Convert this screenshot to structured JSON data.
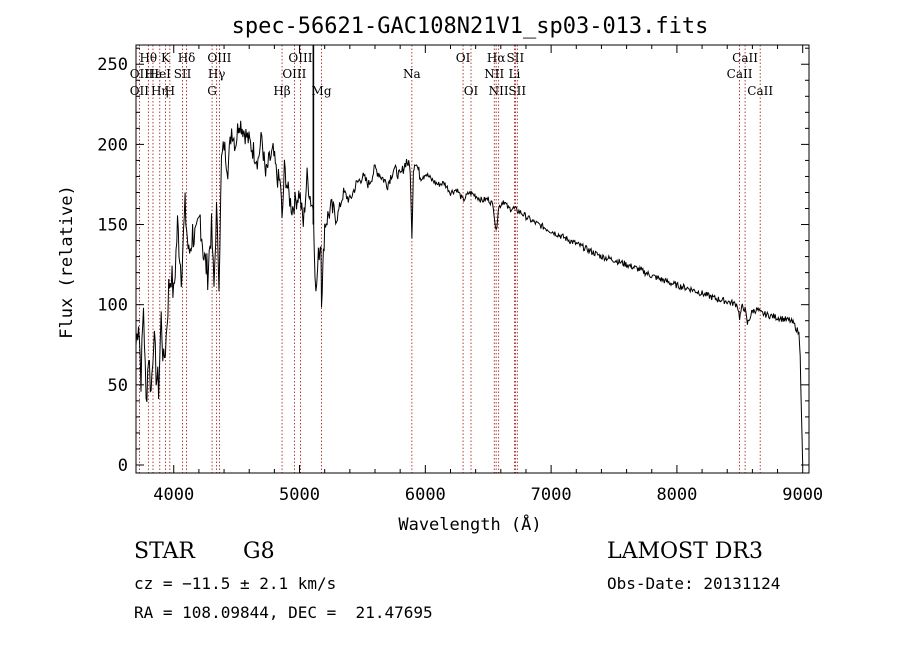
{
  "chart_data": {
    "type": "line",
    "title": "spec-56621-GAC108N21V1_sp03-013.fits",
    "xlabel": "Wavelength (Å)",
    "ylabel": "Flux (relative)",
    "xlim": [
      3700,
      9050
    ],
    "ylim": [
      -5,
      262
    ],
    "xticks": [
      4000,
      5000,
      6000,
      7000,
      8000,
      9000
    ],
    "yticks": [
      0,
      50,
      100,
      150,
      200,
      250
    ],
    "xtick_labels": [
      "4000",
      "5000",
      "6000",
      "7000",
      "8000",
      "9000"
    ],
    "ytick_labels": [
      "0",
      "50",
      "100",
      "150",
      "200",
      "250"
    ],
    "series": [
      {
        "name": "flux",
        "x": [
          3700,
          3720,
          3740,
          3760,
          3780,
          3800,
          3820,
          3840,
          3860,
          3880,
          3900,
          3920,
          3940,
          3960,
          3980,
          4000,
          4030,
          4060,
          4090,
          4120,
          4150,
          4180,
          4210,
          4240,
          4270,
          4300,
          4320,
          4340,
          4360,
          4380,
          4400,
          4430,
          4460,
          4490,
          4520,
          4550,
          4580,
          4610,
          4640,
          4670,
          4700,
          4730,
          4760,
          4790,
          4820,
          4850,
          4861,
          4880,
          4910,
          4940,
          4970,
          5000,
          5030,
          5060,
          5090,
          5110,
          5130,
          5150,
          5170,
          5175,
          5185,
          5200,
          5250,
          5300,
          5350,
          5400,
          5450,
          5500,
          5550,
          5600,
          5650,
          5700,
          5750,
          5800,
          5850,
          5880,
          5893,
          5905,
          5920,
          5960,
          6000,
          6050,
          6100,
          6150,
          6200,
          6250,
          6300,
          6350,
          6400,
          6450,
          6500,
          6540,
          6563,
          6580,
          6620,
          6660,
          6700,
          6750,
          6800,
          6850,
          6900,
          6950,
          7000,
          7100,
          7200,
          7300,
          7400,
          7500,
          7600,
          7700,
          7800,
          7900,
          8000,
          8100,
          8200,
          8300,
          8400,
          8480,
          8498,
          8520,
          8542,
          8560,
          8600,
          8640,
          8662,
          8700,
          8750,
          8800,
          8850,
          8900,
          8930,
          8950,
          8970,
          8980,
          8990,
          9000
        ],
        "values": [
          75,
          92,
          55,
          100,
          38,
          70,
          45,
          82,
          58,
          48,
          92,
          62,
          80,
          110,
          120,
          105,
          150,
          120,
          160,
          130,
          145,
          140,
          155,
          130,
          120,
          150,
          110,
          160,
          115,
          190,
          200,
          185,
          210,
          200,
          215,
          210,
          205,
          200,
          195,
          190,
          205,
          180,
          190,
          195,
          180,
          175,
          150,
          185,
          170,
          160,
          165,
          170,
          150,
          180,
          165,
          160,
          105,
          130,
          140,
          105,
          120,
          150,
          160,
          155,
          170,
          165,
          175,
          180,
          175,
          185,
          180,
          175,
          185,
          180,
          190,
          185,
          140,
          185,
          190,
          180,
          182,
          178,
          175,
          176,
          170,
          172,
          165,
          170,
          168,
          165,
          166,
          162,
          145,
          160,
          165,
          160,
          160,
          158,
          155,
          152,
          150,
          148,
          146,
          142,
          138,
          134,
          130,
          128,
          125,
          122,
          118,
          115,
          112,
          110,
          107,
          104,
          102,
          100,
          92,
          99,
          97,
          88,
          96,
          97,
          95,
          94,
          93,
          92,
          91,
          90,
          88,
          85,
          82,
          70,
          30,
          0
        ]
      }
    ],
    "lines": [
      {
        "label": "Hθ",
        "x": 3798,
        "row": 1,
        "align": "middle"
      },
      {
        "label": "OII",
        "x": 3727,
        "row": 2,
        "align": "middle"
      },
      {
        "label": "OII",
        "x": 3727,
        "row": 3,
        "align": "middle"
      },
      {
        "label": "Hε",
        "x": 3835,
        "row": 2,
        "align": "middle"
      },
      {
        "label": "Hη",
        "x": 3889,
        "row": 3,
        "align": "middle"
      },
      {
        "label": "K",
        "x": 3934,
        "row": 1,
        "align": "middle"
      },
      {
        "label": "HeI",
        "x": 3889,
        "row": 2,
        "align": "middle"
      },
      {
        "label": "H",
        "x": 3969,
        "row": 3,
        "align": "middle"
      },
      {
        "label": "Hδ",
        "x": 4102,
        "row": 1,
        "align": "middle"
      },
      {
        "label": "SII",
        "x": 4070,
        "row": 2,
        "align": "middle"
      },
      {
        "label": "OIII",
        "x": 4363,
        "row": 1,
        "align": "middle"
      },
      {
        "label": "Hγ",
        "x": 4341,
        "row": 2,
        "align": "middle"
      },
      {
        "label": "G",
        "x": 4305,
        "row": 3,
        "align": "middle"
      },
      {
        "label": "Hβ",
        "x": 4861,
        "row": 3,
        "align": "middle"
      },
      {
        "label": "OIII",
        "x": 5007,
        "row": 1,
        "align": "middle"
      },
      {
        "label": "OIII",
        "x": 4959,
        "row": 2,
        "align": "middle"
      },
      {
        "label": "Mg",
        "x": 5175,
        "row": 3,
        "align": "middle"
      },
      {
        "label": "Na",
        "x": 5893,
        "row": 2,
        "align": "middle"
      },
      {
        "label": "OI",
        "x": 6300,
        "row": 1,
        "align": "middle"
      },
      {
        "label": "OI",
        "x": 6363,
        "row": 3,
        "align": "middle"
      },
      {
        "label": "Hα",
        "x": 6563,
        "row": 1,
        "align": "middle"
      },
      {
        "label": "NII",
        "x": 6548,
        "row": 2,
        "align": "middle"
      },
      {
        "label": "NII",
        "x": 6583,
        "row": 3,
        "align": "middle"
      },
      {
        "label": "SII",
        "x": 6716,
        "row": 1,
        "align": "middle"
      },
      {
        "label": "Li",
        "x": 6708,
        "row": 2,
        "align": "middle"
      },
      {
        "label": "SII",
        "x": 6731,
        "row": 3,
        "align": "middle"
      },
      {
        "label": "CaII",
        "x": 8542,
        "row": 1,
        "align": "middle"
      },
      {
        "label": "CaII",
        "x": 8498,
        "row": 2,
        "align": "middle"
      },
      {
        "label": "CaII",
        "x": 8662,
        "row": 3,
        "align": "middle"
      }
    ],
    "special_line": {
      "x": 5110
    }
  },
  "info": {
    "object_type": "STAR",
    "subclass": "G8",
    "survey": "LAMOST DR3",
    "redshift": "cz = −11.5 ± 2.1 km/s",
    "obs_date": "Obs-Date: 20131124",
    "coords": "RA = 108.09844, DEC =  21.47695"
  }
}
